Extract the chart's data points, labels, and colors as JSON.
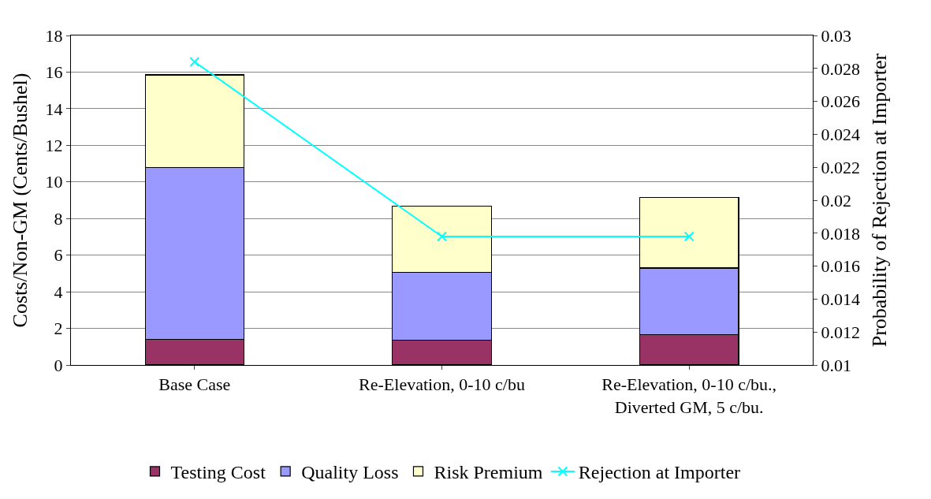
{
  "chart_data": {
    "type": "bar",
    "stacked": true,
    "ylabel": "Costs/Non-GM (Cents/Bushel)",
    "y2label": "Probability of Rejection at Importer",
    "categories": [
      "Base Case",
      "Re-Elevation, 0-10 c/bu",
      "Re-Elevation, 0-10 c/bu.,\nDiverted GM, 5 c/bu."
    ],
    "series": [
      {
        "name": "Testing Cost",
        "color": "#993366",
        "values": [
          1.4,
          1.37,
          1.65
        ]
      },
      {
        "name": "Quality Loss",
        "color": "#9999ff",
        "values": [
          9.4,
          3.7,
          3.65
        ]
      },
      {
        "name": "Risk Premium",
        "color": "#ffffcc",
        "values": [
          5.05,
          3.6,
          3.85
        ]
      },
      {
        "name": "Rejection at Importer",
        "type": "line",
        "axis": "y2",
        "color": "#00ffff",
        "marker": "cross",
        "values": [
          0.0284,
          0.0178,
          0.0178
        ]
      }
    ],
    "ylim": [
      0,
      18
    ],
    "yticks": [
      0,
      2,
      4,
      6,
      8,
      10,
      12,
      14,
      16,
      18
    ],
    "y2lim": [
      0.01,
      0.03
    ],
    "y2ticks": [
      0.01,
      0.012,
      0.014,
      0.016,
      0.018,
      0.02,
      0.022,
      0.024,
      0.026,
      0.028,
      0.03
    ],
    "grid": "y",
    "legend": "bottom"
  }
}
